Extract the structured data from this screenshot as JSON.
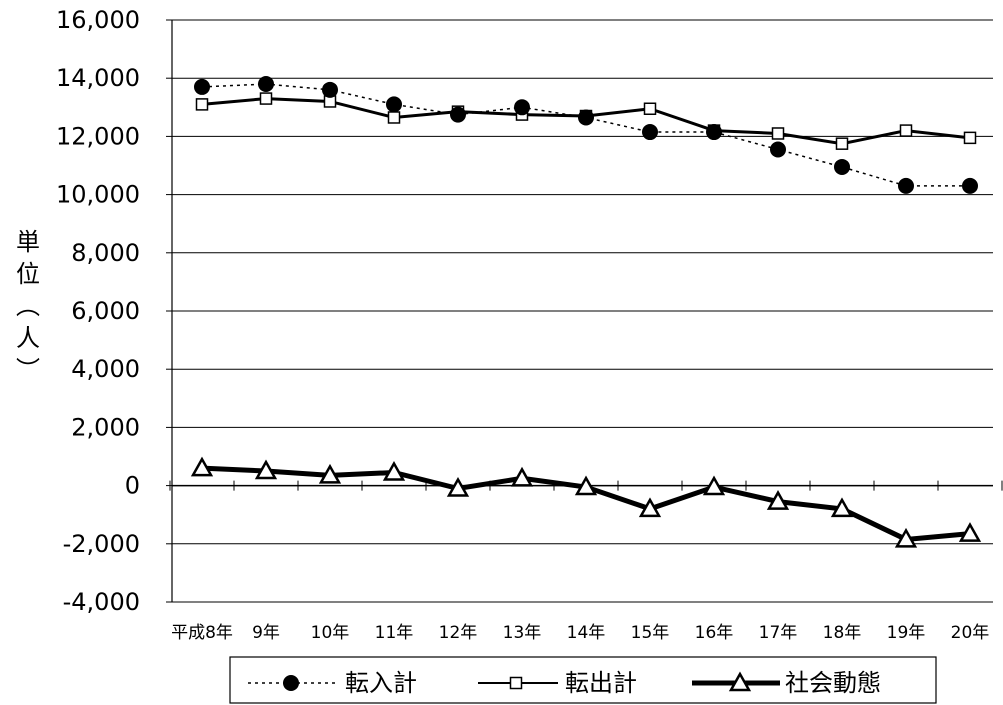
{
  "chart_data": {
    "type": "line",
    "ylabel": "単位（人）",
    "ylim": [
      -4000,
      16000
    ],
    "y_ticks": [
      "16,000",
      "14,000",
      "12,000",
      "10,000",
      "8,000",
      "6,000",
      "4,000",
      "2,000",
      "0",
      "-2,000",
      "-4,000"
    ],
    "categories": [
      "平成8年",
      "9年",
      "10年",
      "11年",
      "12年",
      "13年",
      "14年",
      "15年",
      "16年",
      "17年",
      "18年",
      "19年",
      "20年"
    ],
    "grid": true,
    "legend_position": "bottom",
    "series": [
      {
        "name": "転入計",
        "marker": "circle",
        "line": "dotted",
        "values": [
          13700,
          13800,
          13600,
          13100,
          12750,
          13000,
          12650,
          12150,
          12150,
          11550,
          10950,
          10300,
          10300
        ]
      },
      {
        "name": "転出計",
        "marker": "square",
        "line": "solid",
        "values": [
          13100,
          13300,
          13200,
          12650,
          12850,
          12750,
          12700,
          12950,
          12200,
          12100,
          11750,
          12200,
          11950
        ]
      },
      {
        "name": "社会動態",
        "marker": "triangle",
        "line": "thick",
        "values": [
          600,
          500,
          350,
          450,
          -100,
          250,
          -50,
          -800,
          -50,
          -550,
          -800,
          -1850,
          -1650
        ]
      }
    ]
  }
}
